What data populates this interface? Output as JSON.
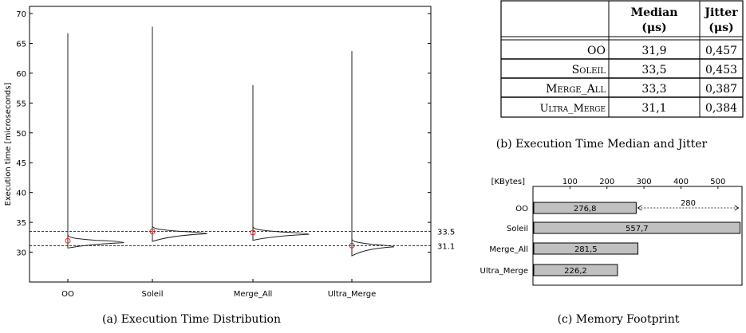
{
  "chart_data": [
    {
      "id": "a",
      "type": "violin",
      "caption": "(a) Execution Time Distribution",
      "ylabel": "Execution time [microseconds]",
      "xlabel": "",
      "ylim": [
        25,
        70
      ],
      "yticks": [
        30,
        35,
        40,
        45,
        50,
        55,
        60,
        65,
        70
      ],
      "categories": [
        "OO",
        "Soleil",
        "Merge_All",
        "Ultra_Merge"
      ],
      "series": [
        {
          "category": "OO",
          "min": 30.7,
          "max": 66.7,
          "median": 31.9,
          "peak": 31.6,
          "peak_width": 0.8
        },
        {
          "category": "Soleil",
          "min": 31.8,
          "max": 67.8,
          "median": 33.5,
          "peak": 33.1,
          "peak_width": 0.78
        },
        {
          "category": "Merge_All",
          "min": 32.0,
          "max": 58.0,
          "median": 33.3,
          "peak": 33.0,
          "peak_width": 0.8
        },
        {
          "category": "Ultra_Merge",
          "min": 29.4,
          "max": 63.7,
          "median": 31.1,
          "peak": 30.9,
          "peak_width": 0.6
        }
      ],
      "reference_lines": [
        {
          "value": 33.5,
          "label": "33.5"
        },
        {
          "value": 31.1,
          "label": "31.1"
        }
      ],
      "grid": false
    },
    {
      "id": "b",
      "type": "table",
      "caption": "(b) Execution Time Median and Jitter",
      "headers": [
        {
          "line1": "",
          "line2": ""
        },
        {
          "line1": "Median",
          "line2": "(μs)"
        },
        {
          "line1": "Jitter",
          "line2": "(μs)"
        }
      ],
      "rows": [
        {
          "name": "OO",
          "median": "31,9",
          "jitter": "0,457"
        },
        {
          "name": "Soleil",
          "median": "33,5",
          "jitter": "0,453"
        },
        {
          "name": "Merge_All",
          "median": "33,3",
          "jitter": "0,387"
        },
        {
          "name": "Ultra_Merge",
          "median": "31,1",
          "jitter": "0,384"
        }
      ]
    },
    {
      "id": "c",
      "type": "bar",
      "orientation": "horizontal",
      "caption": "(c) Memory Footprint",
      "unit_label": "[KBytes]",
      "xlim": [
        0,
        565
      ],
      "xticks": [
        100,
        200,
        300,
        400,
        500
      ],
      "categories": [
        "OO",
        "Soleil",
        "Merge_All",
        "Ultra_Merge"
      ],
      "values": [
        276.8,
        557.7,
        281.5,
        226.2
      ],
      "value_labels": [
        "276,8",
        "557,7",
        "281,5",
        "226,2"
      ],
      "bar_color": "#c0c0c0",
      "annotation": {
        "from": 276.8,
        "to": 557.7,
        "label": "280",
        "row": 0
      }
    }
  ]
}
